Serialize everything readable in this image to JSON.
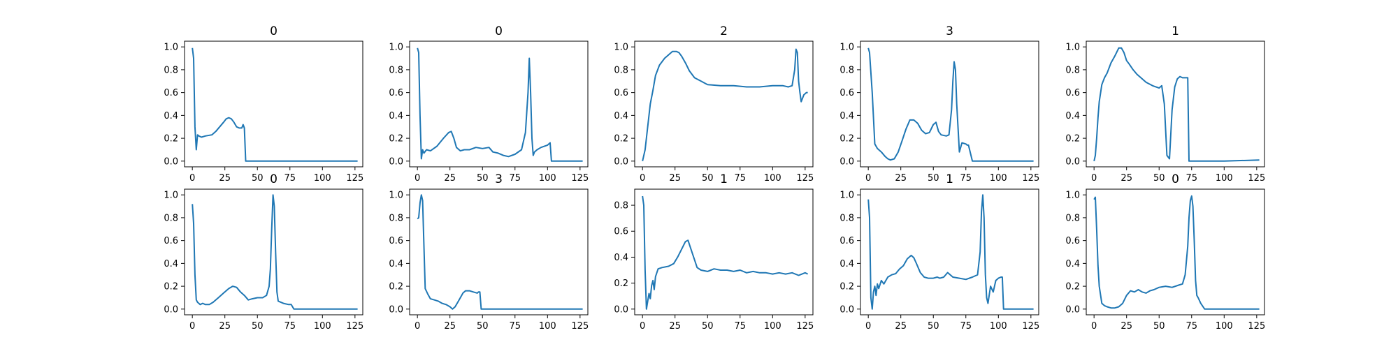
{
  "figure": {
    "line_color": "#1f77b4",
    "rows": 2,
    "cols": 5
  },
  "chart_data": [
    {
      "type": "line",
      "title": "0",
      "xlim": [
        -6,
        131
      ],
      "ylim": [
        -0.05,
        1.05
      ],
      "xticks": [
        0,
        25,
        50,
        75,
        100,
        125
      ],
      "yticks": [
        0.0,
        0.2,
        0.4,
        0.6,
        0.8,
        1.0
      ],
      "x": [
        0,
        1,
        2,
        3,
        4,
        5,
        7,
        10,
        15,
        18,
        21,
        24,
        26,
        28,
        30,
        32,
        34,
        36,
        38,
        39,
        40,
        41,
        42,
        45,
        60,
        80,
        100,
        127
      ],
      "y": [
        0.99,
        0.9,
        0.3,
        0.1,
        0.23,
        0.22,
        0.21,
        0.22,
        0.23,
        0.26,
        0.3,
        0.34,
        0.37,
        0.38,
        0.37,
        0.34,
        0.3,
        0.29,
        0.29,
        0.32,
        0.29,
        0.0,
        0.0,
        0.0,
        0.0,
        0.0,
        0.0,
        0.0
      ]
    },
    {
      "type": "line",
      "title": "0",
      "xlim": [
        -6,
        131
      ],
      "ylim": [
        -0.05,
        1.05
      ],
      "xticks": [
        0,
        25,
        50,
        75,
        100,
        125
      ],
      "yticks": [
        0.0,
        0.2,
        0.4,
        0.6,
        0.8,
        1.0
      ],
      "x": [
        0,
        1,
        2,
        3,
        4,
        5,
        7,
        10,
        15,
        20,
        24,
        26,
        28,
        30,
        33,
        36,
        40,
        45,
        50,
        55,
        58,
        62,
        66,
        70,
        75,
        80,
        83,
        85,
        86,
        87,
        88,
        89,
        90,
        92,
        95,
        100,
        102,
        103,
        104,
        110,
        127
      ],
      "y": [
        0.99,
        0.95,
        0.4,
        0.02,
        0.1,
        0.07,
        0.1,
        0.09,
        0.13,
        0.2,
        0.25,
        0.26,
        0.2,
        0.12,
        0.09,
        0.1,
        0.1,
        0.12,
        0.11,
        0.12,
        0.08,
        0.07,
        0.05,
        0.04,
        0.06,
        0.1,
        0.25,
        0.6,
        0.9,
        0.6,
        0.2,
        0.05,
        0.08,
        0.1,
        0.12,
        0.14,
        0.16,
        0.0,
        0.0,
        0.0,
        0.0
      ]
    },
    {
      "type": "line",
      "title": "2",
      "xlim": [
        -6,
        131
      ],
      "ylim": [
        -0.05,
        1.05
      ],
      "xticks": [
        0,
        25,
        50,
        75,
        100,
        125
      ],
      "yticks": [
        0.0,
        0.2,
        0.4,
        0.6,
        0.8,
        1.0
      ],
      "x": [
        0,
        2,
        4,
        6,
        8,
        10,
        13,
        17,
        20,
        23,
        26,
        28,
        30,
        33,
        36,
        40,
        45,
        50,
        60,
        70,
        80,
        90,
        100,
        108,
        112,
        115,
        117,
        118,
        119,
        120,
        121,
        122,
        124,
        126,
        127
      ],
      "y": [
        0.0,
        0.1,
        0.3,
        0.5,
        0.62,
        0.75,
        0.84,
        0.9,
        0.93,
        0.96,
        0.96,
        0.95,
        0.92,
        0.86,
        0.79,
        0.73,
        0.7,
        0.67,
        0.66,
        0.66,
        0.65,
        0.65,
        0.66,
        0.66,
        0.65,
        0.66,
        0.8,
        0.98,
        0.95,
        0.7,
        0.6,
        0.52,
        0.58,
        0.6,
        0.6
      ]
    },
    {
      "type": "line",
      "title": "3",
      "xlim": [
        -6,
        131
      ],
      "ylim": [
        -0.05,
        1.05
      ],
      "xticks": [
        0,
        25,
        50,
        75,
        100,
        125
      ],
      "yticks": [
        0.0,
        0.2,
        0.4,
        0.6,
        0.8,
        1.0
      ],
      "x": [
        0,
        1,
        3,
        5,
        7,
        10,
        13,
        15,
        17,
        20,
        23,
        26,
        29,
        32,
        35,
        38,
        41,
        44,
        47,
        50,
        52,
        54,
        56,
        60,
        62,
        64,
        65,
        66,
        67,
        68,
        70,
        72,
        75,
        76,
        77,
        80,
        100,
        127
      ],
      "y": [
        0.99,
        0.95,
        0.6,
        0.15,
        0.11,
        0.08,
        0.04,
        0.02,
        0.01,
        0.02,
        0.08,
        0.18,
        0.28,
        0.36,
        0.36,
        0.33,
        0.27,
        0.24,
        0.25,
        0.32,
        0.34,
        0.26,
        0.23,
        0.22,
        0.23,
        0.45,
        0.7,
        0.87,
        0.8,
        0.5,
        0.08,
        0.16,
        0.15,
        0.14,
        0.14,
        0.0,
        0.0,
        0.0
      ]
    },
    {
      "type": "line",
      "title": "1",
      "xlim": [
        -6,
        131
      ],
      "ylim": [
        -0.05,
        1.05
      ],
      "xticks": [
        0,
        25,
        50,
        75,
        100,
        125
      ],
      "yticks": [
        0.0,
        0.2,
        0.4,
        0.6,
        0.8,
        1.0
      ],
      "x": [
        0,
        1,
        2,
        3,
        4,
        6,
        8,
        10,
        13,
        16,
        19,
        21,
        23,
        25,
        27,
        30,
        33,
        36,
        40,
        45,
        50,
        52,
        54,
        56,
        58,
        60,
        62,
        64,
        66,
        68,
        70,
        72,
        73,
        74,
        75,
        100,
        127
      ],
      "y": [
        0.0,
        0.05,
        0.2,
        0.38,
        0.52,
        0.67,
        0.73,
        0.77,
        0.86,
        0.92,
        0.99,
        0.99,
        0.95,
        0.88,
        0.85,
        0.8,
        0.76,
        0.73,
        0.69,
        0.66,
        0.64,
        0.66,
        0.5,
        0.05,
        0.02,
        0.45,
        0.65,
        0.72,
        0.74,
        0.73,
        0.73,
        0.73,
        0.0,
        0.0,
        0.0,
        0.0,
        0.01
      ]
    },
    {
      "type": "line",
      "title": "0",
      "xlim": [
        -6,
        131
      ],
      "ylim": [
        -0.05,
        1.05
      ],
      "xticks": [
        0,
        25,
        50,
        75,
        100,
        125
      ],
      "yticks": [
        0.0,
        0.2,
        0.4,
        0.6,
        0.8,
        1.0
      ],
      "x": [
        0,
        1,
        2,
        3,
        4,
        6,
        8,
        10,
        13,
        16,
        20,
        24,
        28,
        31,
        34,
        37,
        40,
        43,
        46,
        50,
        54,
        57,
        59,
        60,
        61,
        62,
        63,
        64,
        65,
        66,
        70,
        74,
        76,
        78,
        80,
        100,
        127
      ],
      "y": [
        0.92,
        0.75,
        0.3,
        0.08,
        0.06,
        0.04,
        0.05,
        0.04,
        0.04,
        0.06,
        0.1,
        0.14,
        0.18,
        0.2,
        0.19,
        0.15,
        0.12,
        0.08,
        0.09,
        0.1,
        0.1,
        0.12,
        0.2,
        0.35,
        0.7,
        1.0,
        0.9,
        0.5,
        0.15,
        0.07,
        0.05,
        0.04,
        0.04,
        0.0,
        0.0,
        0.0,
        0.0
      ]
    },
    {
      "type": "line",
      "title": "3",
      "xlim": [
        -6,
        131
      ],
      "ylim": [
        -0.05,
        1.05
      ],
      "xticks": [
        0,
        25,
        50,
        75,
        100,
        125
      ],
      "yticks": [
        0.0,
        0.2,
        0.4,
        0.6,
        0.8,
        1.0
      ],
      "x": [
        0,
        1,
        2,
        3,
        4,
        5,
        6,
        8,
        10,
        13,
        16,
        19,
        22,
        25,
        27,
        29,
        31,
        33,
        35,
        37,
        40,
        43,
        46,
        47,
        48,
        49,
        60,
        80,
        100,
        127
      ],
      "y": [
        0.79,
        0.8,
        0.93,
        1.0,
        0.95,
        0.55,
        0.18,
        0.13,
        0.09,
        0.08,
        0.07,
        0.05,
        0.04,
        0.02,
        0.0,
        0.02,
        0.06,
        0.1,
        0.14,
        0.16,
        0.16,
        0.15,
        0.14,
        0.15,
        0.15,
        0.0,
        0.0,
        0.0,
        0.0,
        0.0
      ]
    },
    {
      "type": "line",
      "title": "1",
      "xlim": [
        -6,
        131
      ],
      "ylim": [
        -0.044,
        0.924
      ],
      "xticks": [
        0,
        25,
        50,
        75,
        100,
        125
      ],
      "yticks": [
        0.0,
        0.2,
        0.4,
        0.6,
        0.8
      ],
      "x": [
        0,
        1,
        2,
        3,
        4,
        5,
        6,
        7,
        8,
        9,
        10,
        12,
        15,
        20,
        24,
        27,
        30,
        33,
        35,
        37,
        40,
        42,
        45,
        50,
        55,
        60,
        65,
        70,
        75,
        80,
        85,
        90,
        95,
        100,
        105,
        110,
        115,
        120,
        125,
        127
      ],
      "y": [
        0.87,
        0.8,
        0.3,
        0.0,
        0.06,
        0.12,
        0.08,
        0.18,
        0.22,
        0.15,
        0.25,
        0.31,
        0.32,
        0.33,
        0.35,
        0.4,
        0.46,
        0.52,
        0.53,
        0.47,
        0.38,
        0.32,
        0.3,
        0.29,
        0.31,
        0.3,
        0.3,
        0.29,
        0.3,
        0.28,
        0.29,
        0.28,
        0.28,
        0.27,
        0.28,
        0.27,
        0.28,
        0.26,
        0.28,
        0.27
      ]
    },
    {
      "type": "line",
      "title": "1",
      "xlim": [
        -6,
        131
      ],
      "ylim": [
        -0.05,
        1.05
      ],
      "xticks": [
        0,
        25,
        50,
        75,
        100,
        125
      ],
      "yticks": [
        0.0,
        0.2,
        0.4,
        0.6,
        0.8,
        1.0
      ],
      "x": [
        0,
        1,
        2,
        3,
        4,
        5,
        6,
        7,
        8,
        10,
        12,
        15,
        18,
        21,
        24,
        27,
        30,
        33,
        35,
        37,
        40,
        43,
        46,
        50,
        53,
        55,
        58,
        61,
        65,
        70,
        75,
        80,
        84,
        86,
        87,
        88,
        89,
        90,
        91,
        92,
        94,
        96,
        98,
        100,
        102,
        103,
        104,
        110,
        127
      ],
      "y": [
        0.96,
        0.8,
        0.1,
        0.0,
        0.15,
        0.2,
        0.12,
        0.22,
        0.18,
        0.25,
        0.22,
        0.28,
        0.3,
        0.31,
        0.35,
        0.38,
        0.44,
        0.47,
        0.45,
        0.4,
        0.32,
        0.28,
        0.27,
        0.27,
        0.28,
        0.27,
        0.28,
        0.32,
        0.28,
        0.27,
        0.26,
        0.28,
        0.3,
        0.5,
        0.85,
        1.0,
        0.8,
        0.3,
        0.1,
        0.05,
        0.2,
        0.15,
        0.25,
        0.27,
        0.28,
        0.28,
        0.0,
        0.0,
        0.0
      ]
    },
    {
      "type": "line",
      "title": "0",
      "xlim": [
        -6,
        131
      ],
      "ylim": [
        -0.05,
        1.05
      ],
      "xticks": [
        0,
        25,
        50,
        75,
        100,
        125
      ],
      "yticks": [
        0.0,
        0.2,
        0.4,
        0.6,
        0.8,
        1.0
      ],
      "x": [
        0,
        1,
        2,
        3,
        4,
        6,
        8,
        10,
        13,
        16,
        19,
        22,
        25,
        28,
        31,
        34,
        37,
        40,
        43,
        46,
        50,
        55,
        60,
        65,
        68,
        70,
        72,
        73,
        74,
        75,
        76,
        77,
        78,
        79,
        80,
        82,
        85,
        90,
        100,
        127
      ],
      "y": [
        0.96,
        0.98,
        0.7,
        0.38,
        0.2,
        0.05,
        0.03,
        0.02,
        0.01,
        0.01,
        0.02,
        0.05,
        0.12,
        0.16,
        0.15,
        0.17,
        0.15,
        0.14,
        0.16,
        0.17,
        0.19,
        0.2,
        0.19,
        0.21,
        0.22,
        0.3,
        0.55,
        0.8,
        0.95,
        0.99,
        0.9,
        0.6,
        0.25,
        0.12,
        0.1,
        0.05,
        0.0,
        0.0,
        0.0,
        0.0
      ]
    }
  ]
}
